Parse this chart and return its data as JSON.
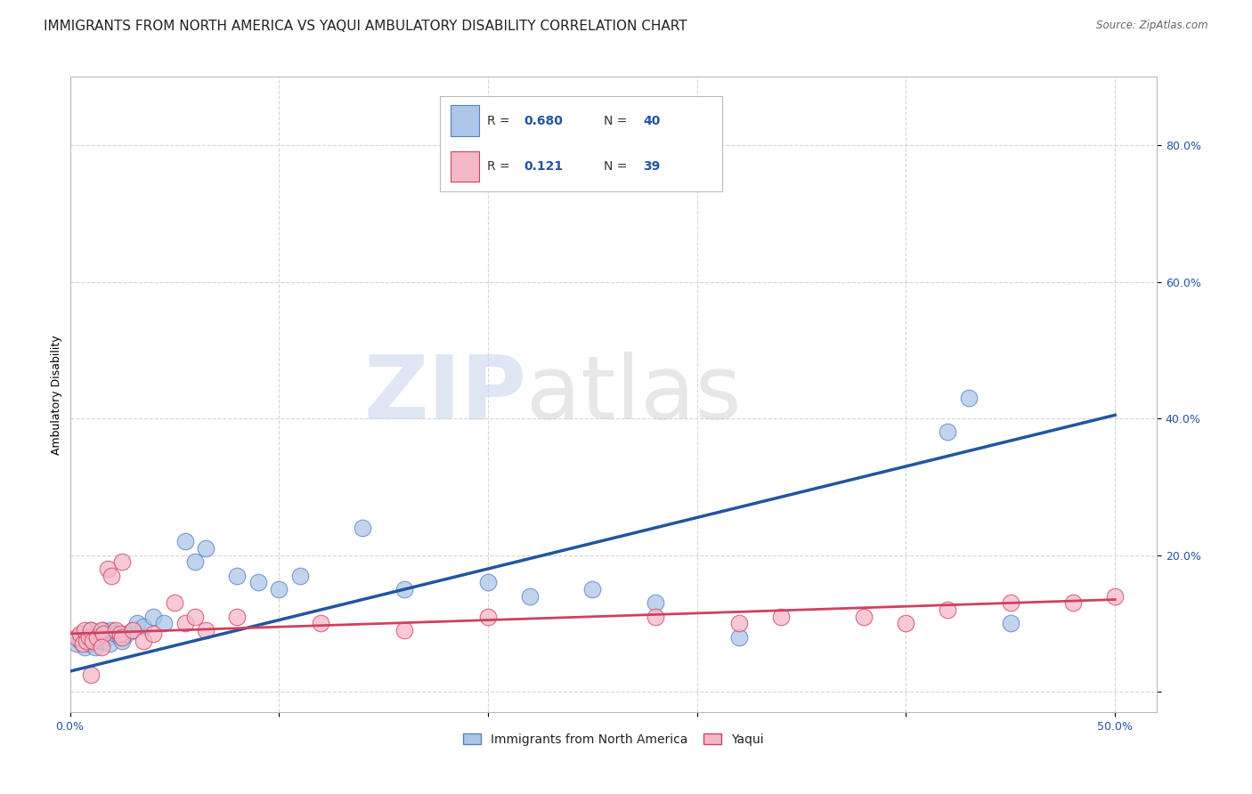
{
  "title": "IMMIGRANTS FROM NORTH AMERICA VS YAQUI AMBULATORY DISABILITY CORRELATION CHART",
  "source": "Source: ZipAtlas.com",
  "ylabel": "Ambulatory Disability",
  "xlim": [
    0.0,
    0.52
  ],
  "ylim": [
    -0.03,
    0.9
  ],
  "xticks": [
    0.0,
    0.1,
    0.2,
    0.3,
    0.4,
    0.5
  ],
  "xticklabels": [
    "0.0%",
    "",
    "",
    "",
    "",
    "50.0%"
  ],
  "yticks": [
    0.0,
    0.2,
    0.4,
    0.6,
    0.8
  ],
  "yticklabels": [
    "",
    "20.0%",
    "40.0%",
    "60.0%",
    "80.0%"
  ],
  "blue_R": "0.680",
  "blue_N": "40",
  "pink_R": "0.121",
  "pink_N": "39",
  "blue_color": "#adc6e8",
  "blue_line_color": "#2255a0",
  "blue_edge_color": "#5580c0",
  "pink_color": "#f5b8c8",
  "pink_line_color": "#d04060",
  "pink_edge_color": "#d04060",
  "watermark_zip": "ZIP",
  "watermark_atlas": "atlas",
  "blue_scatter_x": [
    0.003,
    0.005,
    0.007,
    0.008,
    0.009,
    0.01,
    0.011,
    0.012,
    0.013,
    0.015,
    0.016,
    0.018,
    0.019,
    0.02,
    0.022,
    0.024,
    0.025,
    0.027,
    0.03,
    0.032,
    0.035,
    0.04,
    0.045,
    0.055,
    0.06,
    0.065,
    0.08,
    0.09,
    0.1,
    0.11,
    0.14,
    0.16,
    0.2,
    0.22,
    0.25,
    0.28,
    0.32,
    0.42,
    0.43,
    0.45
  ],
  "blue_scatter_y": [
    0.07,
    0.075,
    0.065,
    0.08,
    0.07,
    0.09,
    0.075,
    0.065,
    0.08,
    0.075,
    0.09,
    0.08,
    0.07,
    0.09,
    0.085,
    0.08,
    0.075,
    0.085,
    0.09,
    0.1,
    0.095,
    0.11,
    0.1,
    0.22,
    0.19,
    0.21,
    0.17,
    0.16,
    0.15,
    0.17,
    0.24,
    0.15,
    0.16,
    0.14,
    0.15,
    0.13,
    0.08,
    0.38,
    0.43,
    0.1
  ],
  "pink_scatter_x": [
    0.003,
    0.005,
    0.006,
    0.007,
    0.008,
    0.009,
    0.01,
    0.011,
    0.013,
    0.015,
    0.016,
    0.018,
    0.02,
    0.022,
    0.024,
    0.025,
    0.03,
    0.035,
    0.04,
    0.05,
    0.055,
    0.06,
    0.065,
    0.08,
    0.12,
    0.16,
    0.2,
    0.28,
    0.32,
    0.34,
    0.38,
    0.4,
    0.42,
    0.45,
    0.48,
    0.5,
    0.025,
    0.015,
    0.01
  ],
  "pink_scatter_y": [
    0.08,
    0.085,
    0.07,
    0.09,
    0.075,
    0.08,
    0.09,
    0.075,
    0.08,
    0.09,
    0.085,
    0.18,
    0.17,
    0.09,
    0.085,
    0.08,
    0.09,
    0.075,
    0.085,
    0.13,
    0.1,
    0.11,
    0.09,
    0.11,
    0.1,
    0.09,
    0.11,
    0.11,
    0.1,
    0.11,
    0.11,
    0.1,
    0.12,
    0.13,
    0.13,
    0.14,
    0.19,
    0.065,
    0.025
  ],
  "blue_line_x": [
    0.0,
    0.5
  ],
  "blue_line_y_start": 0.03,
  "blue_line_y_end": 0.405,
  "pink_line_x": [
    0.0,
    0.5
  ],
  "pink_line_y_start": 0.085,
  "pink_line_y_end": 0.135,
  "grid_color": "#cccccc",
  "background_color": "#ffffff",
  "title_fontsize": 11,
  "axis_label_fontsize": 9,
  "tick_fontsize": 9,
  "legend_fontsize": 11
}
